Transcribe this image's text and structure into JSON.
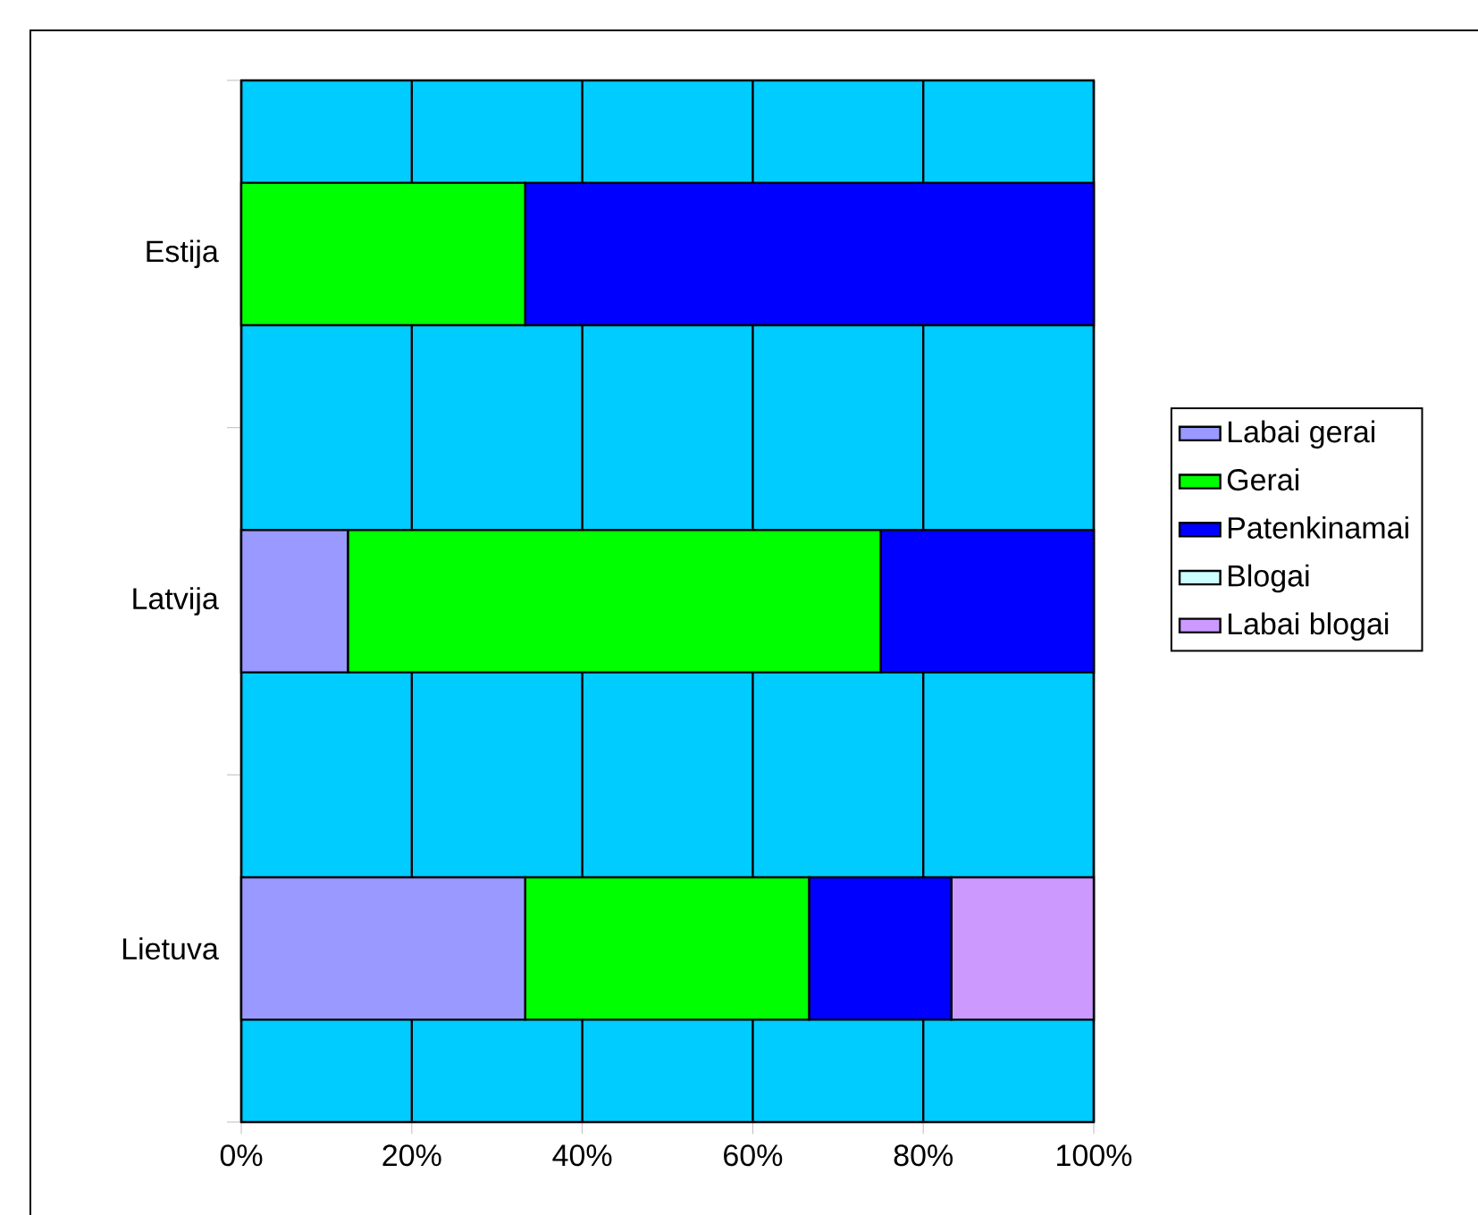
{
  "chart_data": {
    "type": "bar",
    "orientation": "horizontal",
    "stacked": true,
    "categories": [
      "Estija",
      "Latvija",
      "Lietuva"
    ],
    "series": [
      {
        "name": "Labai gerai",
        "color": "#9999ff",
        "values": [
          0,
          12.5,
          33.3
        ]
      },
      {
        "name": "Gerai",
        "color": "#00ff00",
        "values": [
          33.3,
          62.5,
          33.3
        ]
      },
      {
        "name": "Patenkinamai",
        "color": "#0000ff",
        "values": [
          66.7,
          25,
          16.7
        ]
      },
      {
        "name": "Blogai",
        "color": "#ccffff",
        "values": [
          0,
          0,
          0
        ]
      },
      {
        "name": "Labai blogai",
        "color": "#cc99ff",
        "values": [
          0,
          0,
          16.7
        ]
      }
    ],
    "xlim": [
      0,
      100
    ],
    "xticks": [
      {
        "value": 0,
        "label": "0%"
      },
      {
        "value": 20,
        "label": "20%"
      },
      {
        "value": 40,
        "label": "40%"
      },
      {
        "value": 60,
        "label": "60%"
      },
      {
        "value": 80,
        "label": "80%"
      },
      {
        "value": 100,
        "label": "100%"
      }
    ],
    "grid": "x",
    "legend": "right"
  }
}
